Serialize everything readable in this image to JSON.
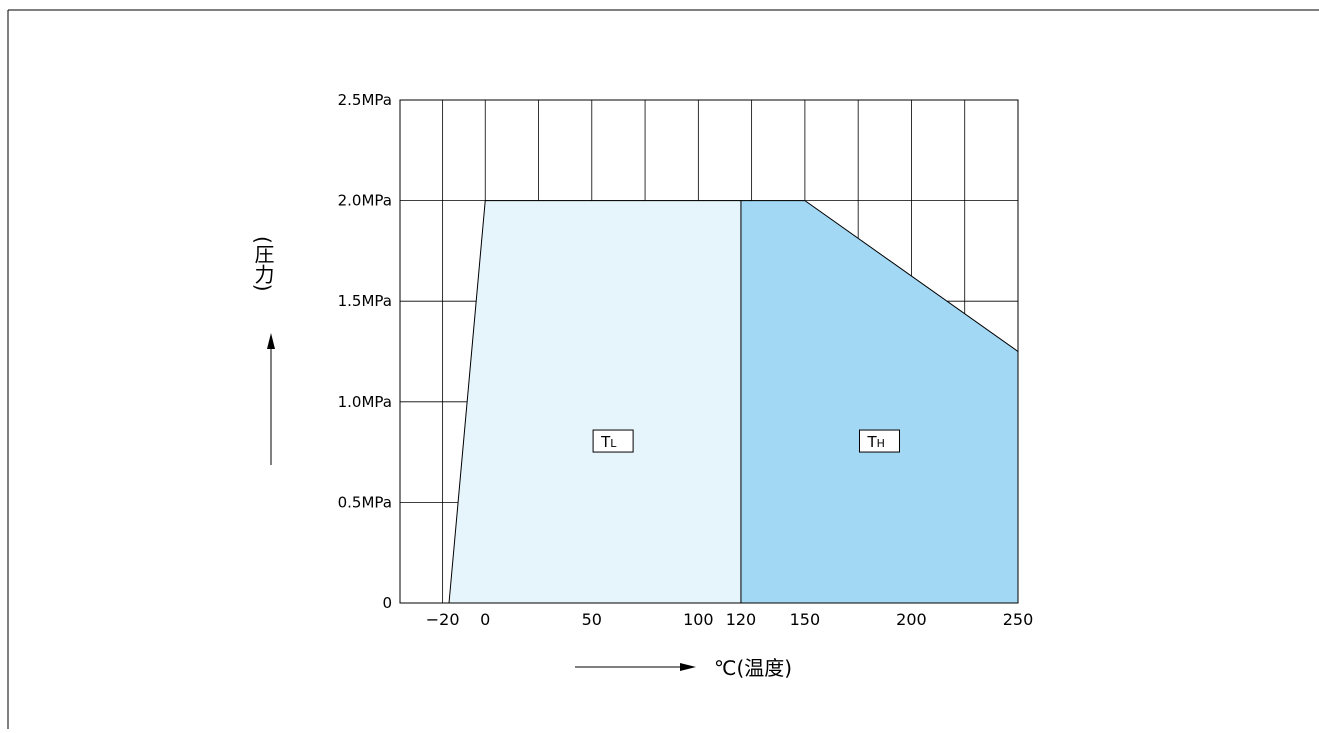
{
  "chart_data": {
    "type": "area",
    "ylabel": "(圧力)",
    "xlabel": "℃(温度)",
    "x_ticks": [
      {
        "value": -20,
        "label": "−20"
      },
      {
        "value": 0,
        "label": "0"
      },
      {
        "value": 50,
        "label": "50"
      },
      {
        "value": 100,
        "label": "100"
      },
      {
        "value": 120,
        "label": "120"
      },
      {
        "value": 150,
        "label": "150"
      },
      {
        "value": 200,
        "label": "200"
      },
      {
        "value": 250,
        "label": "250"
      }
    ],
    "y_ticks": [
      {
        "value": 0,
        "label": "0"
      },
      {
        "value": 0.5,
        "label": "0.5MPa"
      },
      {
        "value": 1.0,
        "label": "1.0MPa"
      },
      {
        "value": 1.5,
        "label": "1.5MPa"
      },
      {
        "value": 2.0,
        "label": "2.0MPa"
      },
      {
        "value": 2.5,
        "label": "2.5MPa"
      }
    ],
    "xlim": [
      -40,
      250
    ],
    "ylim": [
      0,
      2.5
    ],
    "grid": true,
    "series": [
      {
        "name": "TL",
        "label_main": "T",
        "label_sub": "L",
        "color": "#e6f4fc",
        "points": [
          [
            -17,
            0
          ],
          [
            0,
            2.0
          ],
          [
            120,
            2.0
          ],
          [
            120,
            0
          ]
        ]
      },
      {
        "name": "TH",
        "label_main": "T",
        "label_sub": "H",
        "color": "#a3d8f4",
        "points": [
          [
            120,
            0
          ],
          [
            120,
            2.0
          ],
          [
            150,
            2.0
          ],
          [
            250,
            1.25
          ],
          [
            250,
            0
          ]
        ]
      }
    ]
  }
}
